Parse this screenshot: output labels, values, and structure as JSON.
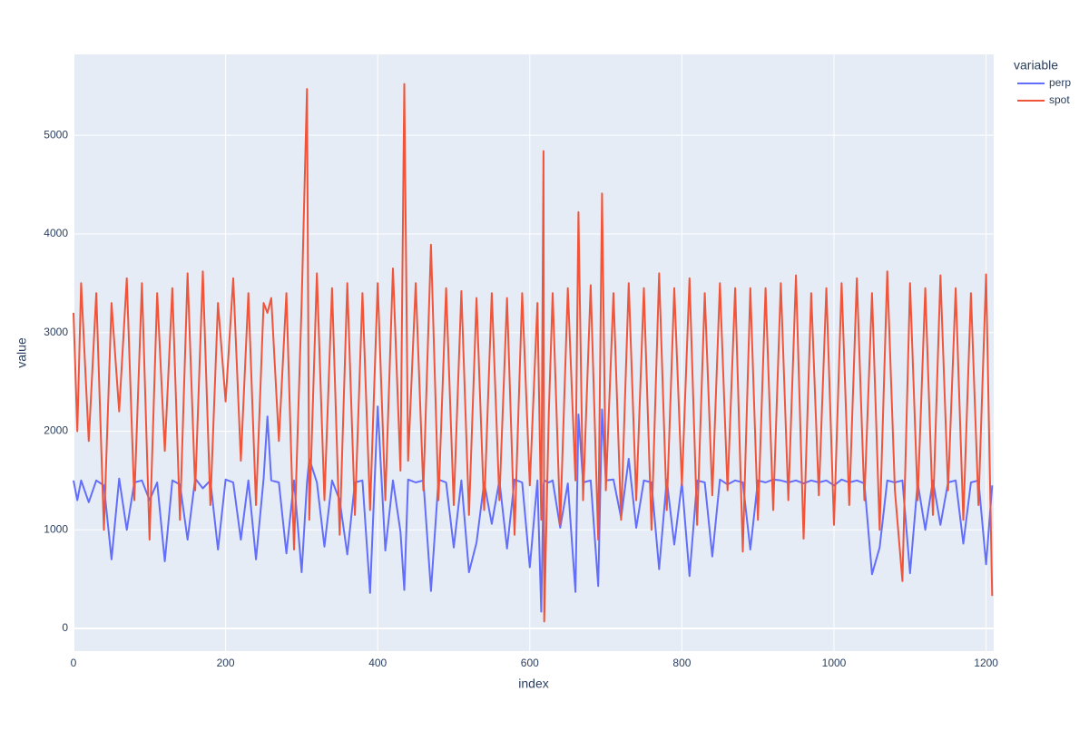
{
  "chart_data": {
    "type": "line",
    "xlabel": "index",
    "ylabel": "value",
    "legend_title": "variable",
    "x": [
      0,
      5,
      10,
      20,
      30,
      40,
      50,
      60,
      70,
      80,
      90,
      100,
      110,
      120,
      130,
      140,
      150,
      160,
      170,
      180,
      190,
      200,
      210,
      220,
      230,
      240,
      250,
      255,
      260,
      270,
      280,
      290,
      300,
      307,
      310,
      320,
      330,
      340,
      350,
      360,
      370,
      380,
      390,
      400,
      410,
      420,
      430,
      435,
      440,
      450,
      460,
      470,
      480,
      490,
      500,
      510,
      520,
      530,
      540,
      550,
      560,
      570,
      580,
      590,
      600,
      610,
      615,
      618,
      619,
      625,
      630,
      640,
      650,
      660,
      664,
      670,
      680,
      690,
      695,
      700,
      710,
      720,
      730,
      740,
      750,
      760,
      770,
      780,
      790,
      800,
      810,
      820,
      830,
      840,
      850,
      860,
      870,
      880,
      890,
      900,
      910,
      920,
      930,
      940,
      950,
      960,
      970,
      980,
      990,
      1000,
      1010,
      1020,
      1030,
      1040,
      1050,
      1060,
      1070,
      1080,
      1090,
      1100,
      1110,
      1120,
      1130,
      1140,
      1150,
      1160,
      1170,
      1180,
      1190,
      1200,
      1208
    ],
    "series": [
      {
        "name": "perp",
        "color": "#636efa",
        "values": [
          1500,
          1300,
          1500,
          1280,
          1500,
          1450,
          700,
          1520,
          1000,
          1480,
          1500,
          1300,
          1480,
          680,
          1500,
          1460,
          900,
          1520,
          1420,
          1500,
          800,
          1510,
          1480,
          900,
          1500,
          700,
          1520,
          2150,
          1500,
          1480,
          760,
          1500,
          570,
          1480,
          1720,
          1480,
          830,
          1500,
          1300,
          750,
          1480,
          1500,
          360,
          2250,
          790,
          1500,
          980,
          390,
          1510,
          1480,
          1500,
          380,
          1510,
          1480,
          820,
          1500,
          570,
          870,
          1480,
          1060,
          1500,
          810,
          1510,
          1480,
          620,
          1500,
          170,
          1450,
          1500,
          1480,
          1500,
          1020,
          1470,
          370,
          2170,
          1480,
          1500,
          430,
          2220,
          1500,
          1510,
          1120,
          1720,
          1020,
          1500,
          1480,
          600,
          1510,
          850,
          1480,
          530,
          1500,
          1480,
          730,
          1510,
          1460,
          1500,
          1480,
          800,
          1500,
          1480,
          1510,
          1500,
          1480,
          1500,
          1470,
          1500,
          1480,
          1500,
          1450,
          1510,
          1480,
          1500,
          1470,
          550,
          820,
          1500,
          1480,
          1500,
          560,
          1480,
          1000,
          1500,
          1050,
          1480,
          1500,
          860,
          1480,
          1500,
          650,
          1450
        ]
      },
      {
        "name": "spot",
        "color": "#EF553B",
        "values": [
          3200,
          2000,
          3500,
          1900,
          3400,
          1000,
          3300,
          2200,
          3550,
          1300,
          3500,
          900,
          3400,
          1800,
          3450,
          1100,
          3600,
          1400,
          3620,
          1250,
          3300,
          2300,
          3550,
          1700,
          3400,
          1250,
          3300,
          3200,
          3350,
          1900,
          3400,
          800,
          3300,
          5470,
          1100,
          3600,
          1300,
          3450,
          950,
          3500,
          1150,
          3400,
          1200,
          3500,
          1300,
          3650,
          1600,
          5520,
          1700,
          3500,
          1400,
          3890,
          1300,
          3450,
          1250,
          3420,
          1150,
          3350,
          1200,
          3400,
          1300,
          3350,
          950,
          3400,
          1450,
          3300,
          1100,
          4840,
          70,
          2200,
          3400,
          1050,
          3450,
          1500,
          4220,
          1300,
          3480,
          900,
          4410,
          1400,
          3400,
          1100,
          3500,
          1300,
          3450,
          1000,
          3600,
          1200,
          3450,
          1450,
          3550,
          1050,
          3400,
          1350,
          3500,
          1400,
          3450,
          780,
          3450,
          1100,
          3450,
          1200,
          3500,
          1300,
          3580,
          910,
          3400,
          1350,
          3450,
          1050,
          3500,
          1250,
          3550,
          1300,
          3400,
          1000,
          3620,
          1400,
          480,
          3500,
          1300,
          3450,
          1150,
          3580,
          1400,
          3450,
          1100,
          3400,
          1250,
          3590,
          330
        ]
      }
    ],
    "xlim": [
      0,
      1210
    ],
    "xticks": [
      0,
      200,
      400,
      600,
      800,
      1000,
      1200
    ],
    "ylim": [
      -230,
      5820
    ],
    "yticks": [
      0,
      1000,
      2000,
      3000,
      4000,
      5000
    ],
    "grid": true,
    "legend": "right"
  }
}
